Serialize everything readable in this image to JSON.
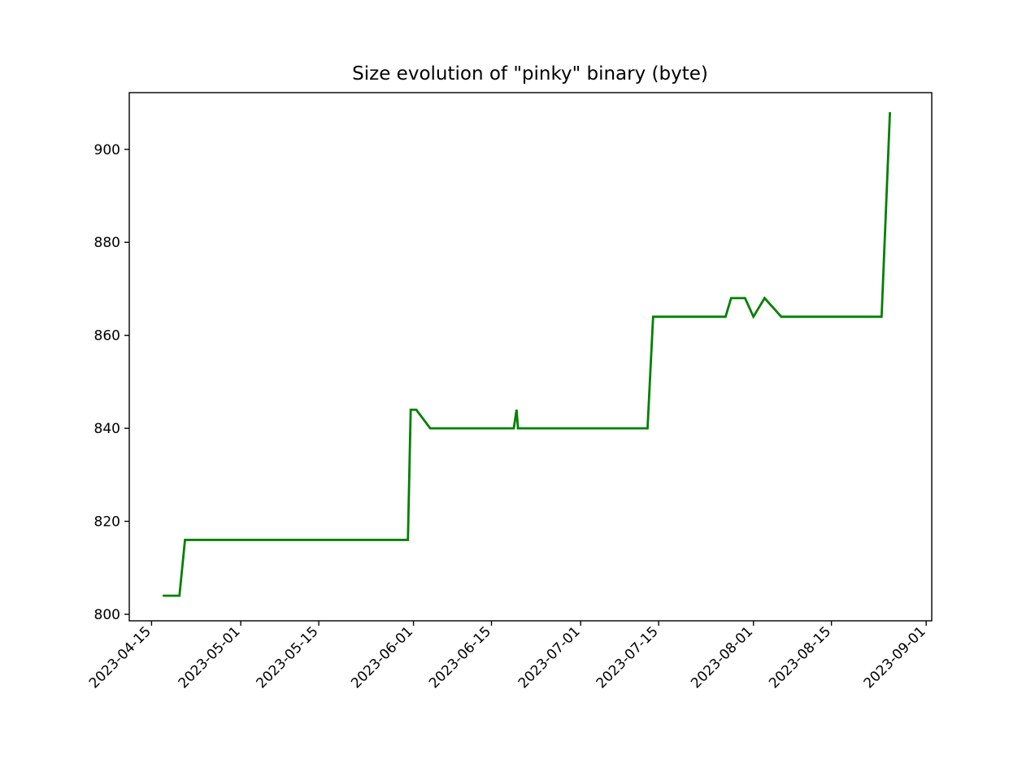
{
  "chart_data": {
    "type": "line",
    "title": "Size evolution of \"pinky\" binary (byte)",
    "xlabel": "",
    "ylabel": "",
    "grid": false,
    "xlim": [
      "2023-04-11",
      "2023-09-02"
    ],
    "ylim": [
      798.6,
      912.2
    ],
    "x_ticks": [
      "2023-04-15",
      "2023-05-01",
      "2023-05-15",
      "2023-06-01",
      "2023-06-15",
      "2023-07-01",
      "2023-07-15",
      "2023-08-01",
      "2023-08-15",
      "2023-09-01"
    ],
    "y_ticks": [
      800,
      820,
      840,
      860,
      880,
      900
    ],
    "series": [
      {
        "color": "#008000",
        "points": [
          {
            "x": "2023-04-17",
            "y": 804
          },
          {
            "x": "2023-04-20",
            "y": 804
          },
          {
            "x": "2023-04-21",
            "y": 816
          },
          {
            "x": "2023-05-31",
            "y": 816
          },
          {
            "x": "2023-05-31 12:00",
            "y": 844
          },
          {
            "x": "2023-06-01 12:00",
            "y": 844
          },
          {
            "x": "2023-06-04",
            "y": 840
          },
          {
            "x": "2023-06-19",
            "y": 840
          },
          {
            "x": "2023-06-19 12:00",
            "y": 844
          },
          {
            "x": "2023-06-19 18:00",
            "y": 840
          },
          {
            "x": "2023-07-13",
            "y": 840
          },
          {
            "x": "2023-07-14",
            "y": 864
          },
          {
            "x": "2023-07-27",
            "y": 864
          },
          {
            "x": "2023-07-28",
            "y": 868
          },
          {
            "x": "2023-07-30 12:00",
            "y": 868
          },
          {
            "x": "2023-08-01",
            "y": 864
          },
          {
            "x": "2023-08-03",
            "y": 868
          },
          {
            "x": "2023-08-06",
            "y": 864
          },
          {
            "x": "2023-08-24",
            "y": 864
          },
          {
            "x": "2023-08-25 12:00",
            "y": 908
          }
        ]
      }
    ]
  }
}
